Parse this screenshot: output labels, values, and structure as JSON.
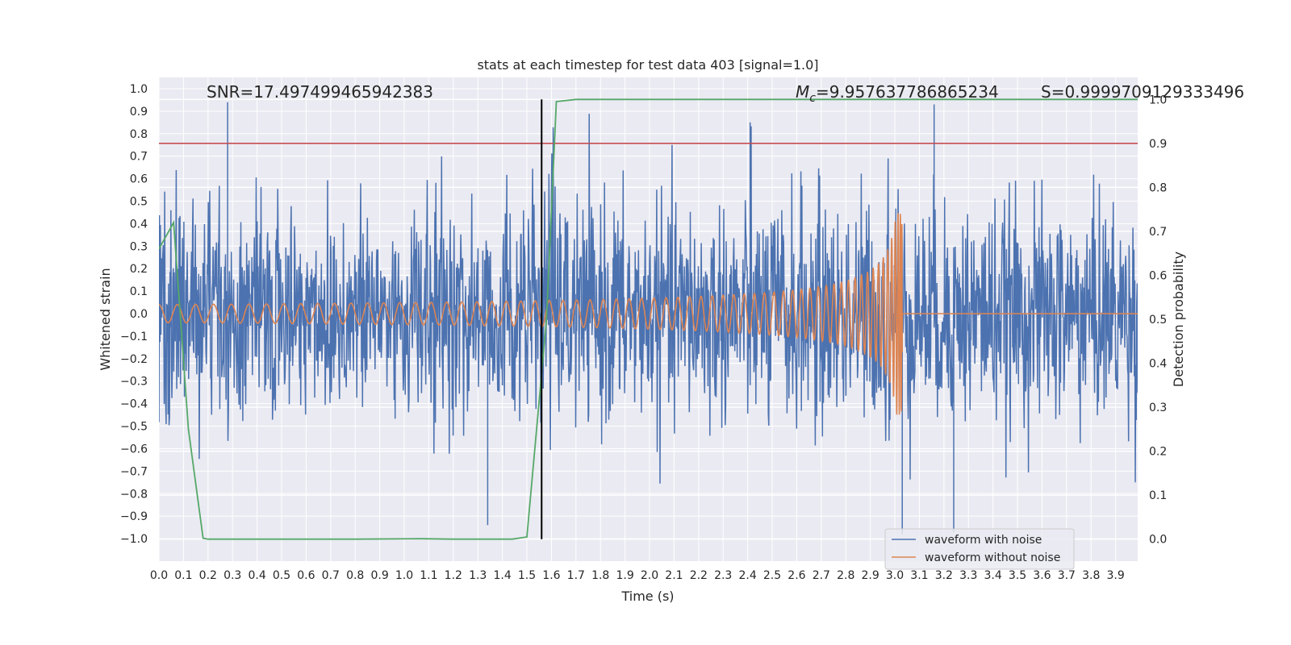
{
  "chart_data": {
    "type": "line",
    "title": "stats at each timestep for test data 403 [signal=1.0]",
    "xlabel": "Time (s)",
    "ylabel": "Whitened strain",
    "y2label": "Detection probability",
    "xlim": [
      0.0,
      3.99
    ],
    "ylim": [
      -1.1,
      1.05
    ],
    "y2lim": [
      -0.05,
      1.05
    ],
    "x_ticks": [
      "0.0",
      "0.1",
      "0.2",
      "0.3",
      "0.4",
      "0.5",
      "0.6",
      "0.7",
      "0.8",
      "0.9",
      "1.0",
      "1.1",
      "1.2",
      "1.3",
      "1.4",
      "1.5",
      "1.6",
      "1.7",
      "1.8",
      "1.9",
      "2.0",
      "2.1",
      "2.2",
      "2.3",
      "2.4",
      "2.5",
      "2.6",
      "2.7",
      "2.8",
      "2.9",
      "3.0",
      "3.1",
      "3.2",
      "3.3",
      "3.4",
      "3.5",
      "3.6",
      "3.7",
      "3.8",
      "3.9"
    ],
    "y_ticks": [
      "1.0",
      "0.9",
      "0.8",
      "0.7",
      "0.6",
      "0.5",
      "0.4",
      "0.3",
      "0.2",
      "0.1",
      "0.0",
      "−0.1",
      "−0.2",
      "−0.3",
      "−0.4",
      "−0.5",
      "−0.6",
      "−0.7",
      "−0.8",
      "−0.9",
      "−1.0"
    ],
    "y2_ticks": [
      "1.0",
      "0.9",
      "0.8",
      "0.7",
      "0.6",
      "0.5",
      "0.4",
      "0.3",
      "0.2",
      "0.1",
      "0.0"
    ],
    "annotations": {
      "snr": "SNR=17.497499465942383",
      "mc_symbol": "M",
      "mc_sub": "c",
      "mc_value": "=9.957637786865234",
      "s": "S=0.9999709129333496"
    },
    "threshold": {
      "y2": 0.9,
      "color": "#c44e52"
    },
    "event_time": 1.56,
    "legend": {
      "position": "lower-right",
      "entries": [
        {
          "name": "waveform with noise",
          "color": "#4c72b0"
        },
        {
          "name": "waveform without noise",
          "color": "#dd8452"
        }
      ]
    },
    "series": [
      {
        "name": "waveform with noise",
        "color": "#4c72b0",
        "description": "noisy whitened strain, amplitude about ±0.5 with spikes to ±0.95",
        "sample_rate_hz": 512,
        "noise_std": 0.24,
        "spikes": [
          [
            0.28,
            0.94
          ],
          [
            1.34,
            -0.94
          ],
          [
            2.41,
            0.85
          ],
          [
            3.03,
            -0.98
          ],
          [
            3.16,
            0.93
          ],
          [
            3.24,
            -0.97
          ]
        ]
      },
      {
        "name": "waveform without noise",
        "color": "#dd8452",
        "description": "chirp signal",
        "t_merger": 3.03,
        "amplitude_start": 0.04,
        "amplitude_peak": 0.45,
        "ringdown_level": 0.0
      },
      {
        "name": "detection probability",
        "axis": "y2",
        "color": "#55a868",
        "x": [
          0.0,
          0.06,
          0.12,
          0.18,
          0.2,
          0.4,
          0.8,
          1.07,
          1.2,
          1.44,
          1.5,
          1.58,
          1.62,
          1.7,
          2.0,
          3.0,
          3.99
        ],
        "y": [
          0.66,
          0.72,
          0.25,
          0.002,
          0.0,
          0.0,
          0.0,
          0.001,
          0.0,
          0.0,
          0.005,
          0.5,
          0.995,
          1.0,
          1.0,
          1.0,
          1.0
        ]
      }
    ],
    "grid": true,
    "colors": {
      "background": "#eaeaf2",
      "grid": "#ffffff",
      "event_line": "#000000"
    }
  }
}
